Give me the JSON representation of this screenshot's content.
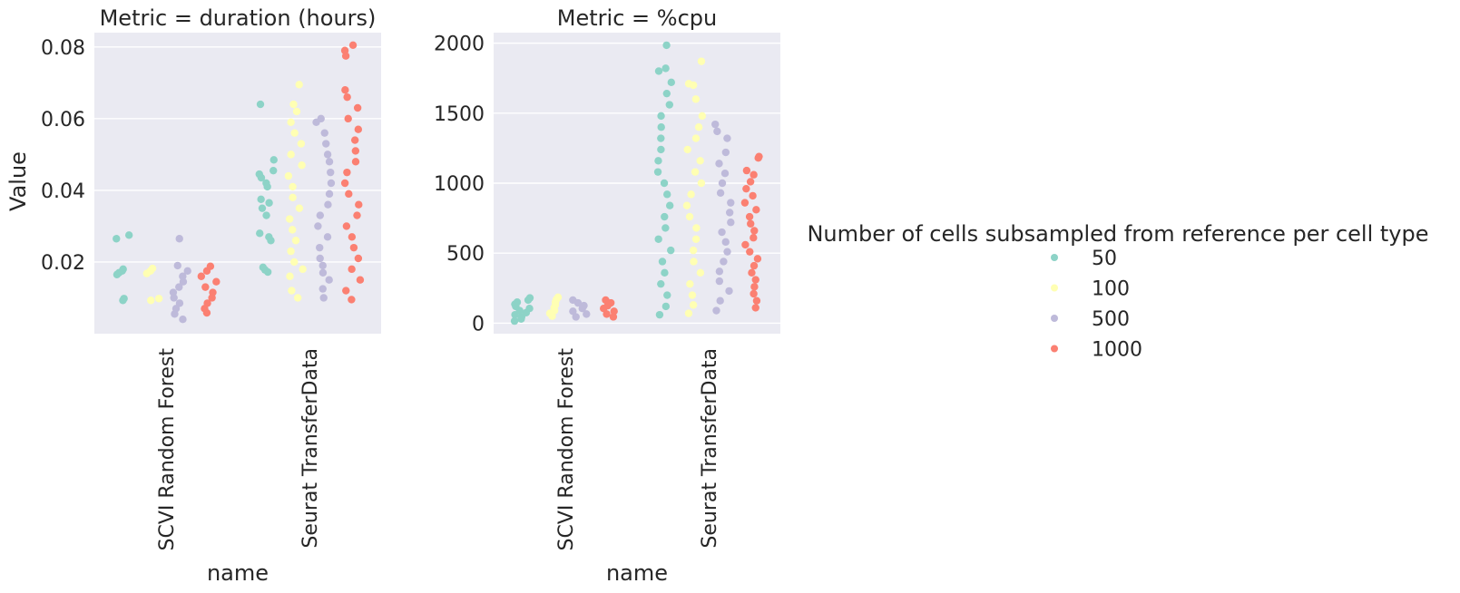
{
  "figure": {
    "ylabel": "Value",
    "legend": {
      "title": "Number of cells subsampled from reference per cell type",
      "placement": "right",
      "entries": [
        {
          "label": "50",
          "color": "#8dd3c7"
        },
        {
          "label": "100",
          "color": "#ffffb3"
        },
        {
          "label": "500",
          "color": "#bebada"
        },
        {
          "label": "1000",
          "color": "#fb8072"
        }
      ]
    }
  },
  "chart_data": [
    {
      "type": "scatter",
      "style": "strip plot (dodged, jittered)",
      "title": "Metric = duration (hours)",
      "xlabel": "name",
      "ylabel": "Value",
      "categories": [
        "SCVI Random Forest",
        "Seurat TransferData"
      ],
      "ylim": [
        0,
        0.084
      ],
      "yticks": [
        0.02,
        0.04,
        0.06,
        0.08
      ],
      "ytick_labels": [
        "0.02",
        "0.04",
        "0.06",
        "0.08"
      ],
      "grid": true,
      "series": [
        {
          "name": "50",
          "color": "#8dd3c7",
          "values": [
            [
              0.0093,
              0.0098,
              0.0165,
              0.017,
              0.0175,
              0.018,
              0.0265,
              0.0275
            ],
            [
              0.0172,
              0.0178,
              0.0185,
              0.026,
              0.027,
              0.028,
              0.033,
              0.035,
              0.0365,
              0.0375,
              0.041,
              0.042,
              0.0435,
              0.0445,
              0.0455,
              0.0485,
              0.064
            ]
          ]
        },
        {
          "name": "100",
          "color": "#ffffb3",
          "values": [
            [
              0.0093,
              0.0098,
              0.0168,
              0.0175,
              0.0182
            ],
            [
              0.01,
              0.012,
              0.016,
              0.018,
              0.02,
              0.023,
              0.026,
              0.029,
              0.032,
              0.035,
              0.038,
              0.041,
              0.044,
              0.047,
              0.05,
              0.053,
              0.056,
              0.059,
              0.062,
              0.064,
              0.0695
            ]
          ]
        },
        {
          "name": "500",
          "color": "#bebada",
          "values": [
            [
              0.004,
              0.0055,
              0.007,
              0.0085,
              0.01,
              0.0115,
              0.013,
              0.0145,
              0.016,
              0.0175,
              0.019,
              0.0265
            ],
            [
              0.01,
              0.0125,
              0.015,
              0.017,
              0.019,
              0.021,
              0.024,
              0.027,
              0.03,
              0.033,
              0.036,
              0.039,
              0.042,
              0.045,
              0.048,
              0.05,
              0.053,
              0.056,
              0.059,
              0.06
            ]
          ]
        },
        {
          "name": "1000",
          "color": "#fb8072",
          "values": [
            [
              0.0058,
              0.007,
              0.0085,
              0.01,
              0.0115,
              0.013,
              0.0145,
              0.016,
              0.0175,
              0.0188
            ],
            [
              0.0095,
              0.012,
              0.015,
              0.018,
              0.021,
              0.024,
              0.027,
              0.03,
              0.033,
              0.036,
              0.039,
              0.042,
              0.045,
              0.048,
              0.051,
              0.054,
              0.057,
              0.06,
              0.063,
              0.066,
              0.068,
              0.0775,
              0.079,
              0.0805
            ]
          ]
        }
      ]
    },
    {
      "type": "scatter",
      "style": "strip plot (dodged, jittered)",
      "title": "Metric = %cpu",
      "xlabel": "name",
      "ylabel": "",
      "categories": [
        "SCVI Random Forest",
        "Seurat TransferData"
      ],
      "ylim": [
        -75,
        2075
      ],
      "yticks": [
        0,
        500,
        1000,
        1500,
        2000
      ],
      "ytick_labels": [
        "0",
        "500",
        "1000",
        "1500",
        "2000"
      ],
      "grid": true,
      "series": [
        {
          "name": "50",
          "color": "#8dd3c7",
          "values": [
            [
              15,
              30,
              45,
              60,
              75,
              90,
              105,
              120,
              135,
              150,
              165,
              180
            ],
            [
              60,
              120,
              200,
              280,
              360,
              440,
              520,
              600,
              680,
              760,
              840,
              920,
              1000,
              1080,
              1160,
              1240,
              1320,
              1400,
              1480,
              1560,
              1640,
              1720,
              1800,
              1820,
              1985
            ]
          ]
        },
        {
          "name": "100",
          "color": "#ffffb3",
          "values": [
            [
              50,
              70,
              90,
              110,
              130,
              150,
              170,
              185
            ],
            [
              70,
              130,
              200,
              280,
              360,
              440,
              520,
              600,
              680,
              760,
              840,
              920,
              1000,
              1080,
              1160,
              1240,
              1320,
              1400,
              1480,
              1600,
              1700,
              1710,
              1870
            ]
          ]
        },
        {
          "name": "500",
          "color": "#bebada",
          "values": [
            [
              45,
              65,
              85,
              105,
              125,
              145,
              165
            ],
            [
              90,
              160,
              230,
              300,
              370,
              440,
              510,
              580,
              650,
              720,
              790,
              860,
              930,
              1000,
              1070,
              1140,
              1220,
              1320,
              1370,
              1420
            ]
          ]
        },
        {
          "name": "1000",
          "color": "#fb8072",
          "values": [
            [
              45,
              65,
              85,
              105,
              125,
              145,
              165
            ],
            [
              110,
              160,
              210,
              260,
              310,
              360,
              410,
              460,
              510,
              560,
              610,
              660,
              710,
              760,
              810,
              860,
              910,
              960,
              1010,
              1060,
              1090,
              1180,
              1190
            ]
          ]
        }
      ]
    }
  ]
}
